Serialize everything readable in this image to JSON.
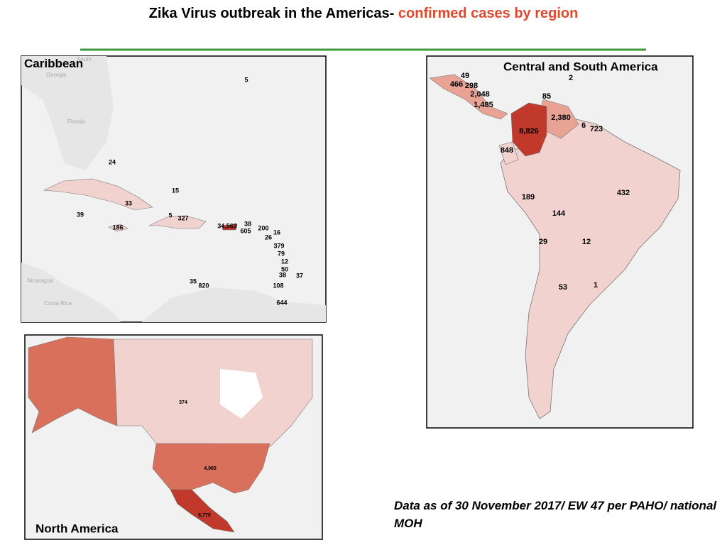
{
  "title": {
    "lead": "Zika Virus outbreak in the Americas-",
    "highlight": "confirmed cases by region"
  },
  "maps": [
    {
      "title": "Caribbean",
      "labels": [
        "5",
        "24",
        "15",
        "33",
        "39",
        "5",
        "327",
        "186",
        "34,563",
        "38",
        "605",
        "200",
        "16",
        "26",
        "379",
        "79",
        "12",
        "50",
        "38",
        "37",
        "35",
        "820",
        "108",
        "644"
      ],
      "place_names": [
        "South",
        "Georgia",
        "Florida",
        "Nicaragua",
        "Costa Rica"
      ]
    },
    {
      "title": "Central and South America",
      "labels": [
        "49",
        "466",
        "298",
        "2,048",
        "1,485",
        "85",
        "2",
        "2,380",
        "8,826",
        "6",
        "723",
        "848",
        "432",
        "189",
        "144",
        "29",
        "12",
        "53",
        "1"
      ]
    },
    {
      "title": "North America",
      "labels": [
        "374",
        "4,965",
        "6,779"
      ]
    }
  ],
  "footnote": "Data as of 30 November 2017/ EW 47 per PAHO/ national MOH"
}
